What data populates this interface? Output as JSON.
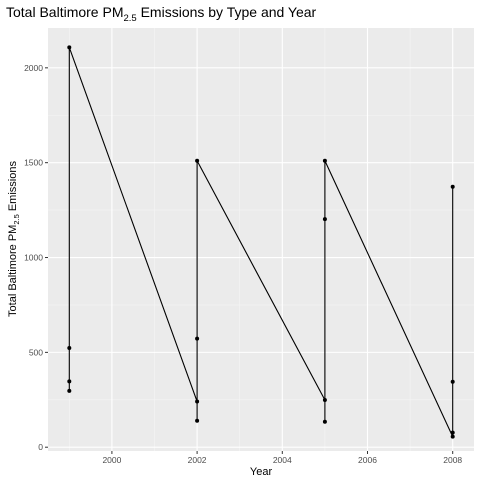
{
  "chart_data": {
    "type": "line",
    "title": {
      "prefix": "Total Baltimore  PM",
      "sub": "2.5",
      "suffix": " Emissions by Type and Year"
    },
    "xlabel": "Year",
    "ylabel": {
      "prefix": "Total Baltimore PM",
      "sub": "2.5",
      "suffix": " Emissions"
    },
    "xlim": [
      1998.5,
      2008.5
    ],
    "ylim": [
      -20,
      2210
    ],
    "x_ticks": [
      2000,
      2002,
      2004,
      2006,
      2008
    ],
    "x_tick_labels": [
      "2000",
      "2002",
      "2004",
      "2006",
      "2008"
    ],
    "y_ticks": [
      0,
      500,
      1000,
      1500,
      2000
    ],
    "y_tick_labels": [
      "0",
      "500",
      "1000",
      "1500",
      "2000"
    ],
    "grid": true,
    "legend": "none",
    "x": [
      1999,
      2002,
      2005,
      2008
    ],
    "series": [
      {
        "values": [
          296.8,
          240.8,
          248.9,
          55.8
        ]
      },
      {
        "values": [
          522.9,
          139.5,
          134.3,
          76.9
        ]
      },
      {
        "values": [
          346.8,
          572.5,
          1202.5,
          344.98
        ]
      },
      {
        "values": [
          2107.6,
          1510.0,
          1510.0,
          1373.2
        ]
      }
    ],
    "colors": {
      "panel": "#ebebeb",
      "grid_major": "#ffffff",
      "grid_minor": "#f5f5f5",
      "line": "#000000",
      "tick_label": "#4d4d4d"
    }
  }
}
